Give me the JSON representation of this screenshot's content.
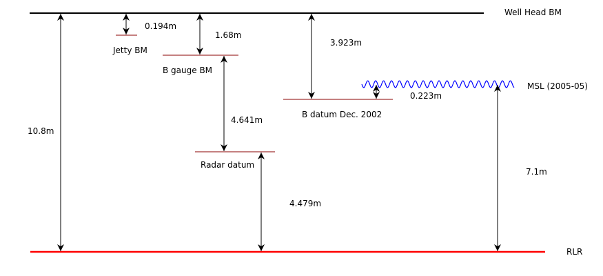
{
  "levels": {
    "well_head": "Well Head BM",
    "jetty": "Jetty BM",
    "b_gauge": "B gauge BM",
    "b_datum": "B datum Dec. 2002",
    "radar": "Radar datum",
    "msl": "MSL (2005-05)",
    "rlr": "RLR"
  },
  "distances": {
    "well_to_rlr": "10.8m",
    "well_to_jetty": "0.194m",
    "well_to_bgauge": "1.68m",
    "well_to_bdatum": "3.923m",
    "bdatum_to_msl": "0.223m",
    "bgauge_to_radar": "4.641m",
    "radar_to_rlr": "4.479m",
    "msl_to_rlr": "7.1m"
  },
  "colors": {
    "well_head_line": "#000000",
    "datum_lines": "#8b0000",
    "rlr_line": "#ff0000",
    "msl_wave": "#0000ff",
    "arrows": "#000000"
  }
}
